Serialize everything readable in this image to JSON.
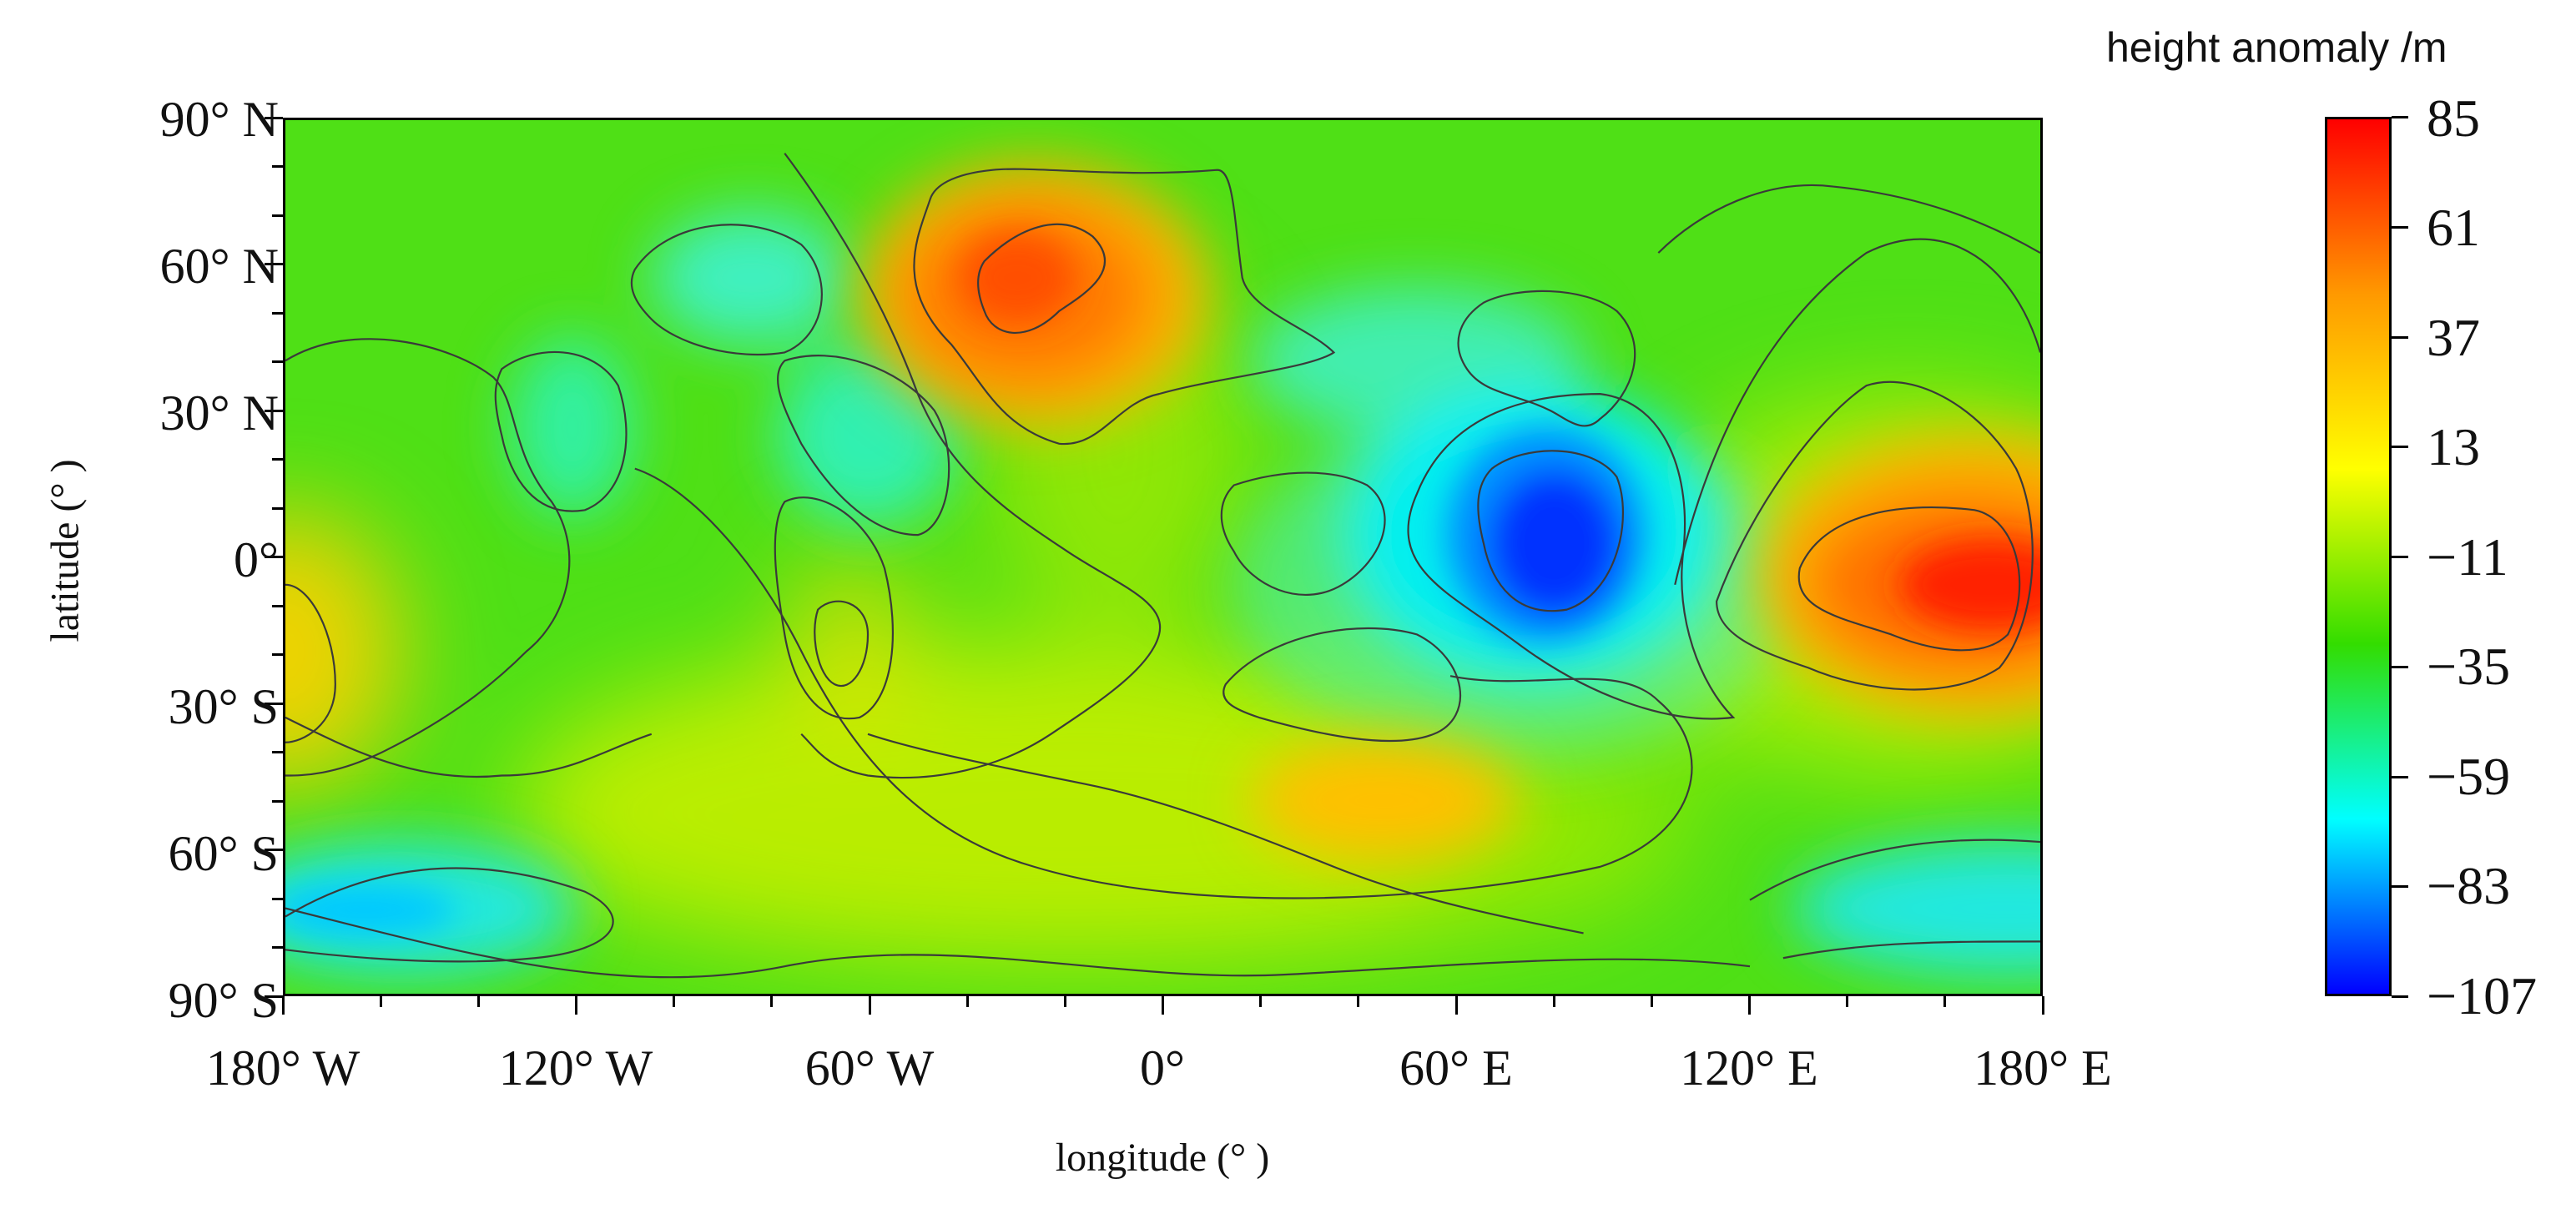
{
  "map": {
    "colorbar_title": "height anomaly /m",
    "xlabel": "longitude (° )",
    "ylabel": "latitude (° )",
    "lat_ticks": [
      "90° N",
      "60° N",
      "30° N",
      "0°",
      "30° S",
      "60° S",
      "90° S"
    ],
    "lon_ticks": [
      "180° W",
      "120° W",
      "60° W",
      "0°",
      "60° E",
      "120° E",
      "180° E"
    ],
    "colorbar_ticks": [
      "85",
      "61",
      "37",
      "13",
      "−11",
      "−35",
      "−59",
      "−83",
      "−107"
    ],
    "value_range": [
      -107,
      85
    ],
    "colors": {
      "max": "#ff0000",
      "high": "#ff9900",
      "mid_high": "#ffff00",
      "mid": "#33dd00",
      "low": "#00ffff",
      "min": "#0000ff"
    },
    "features": [
      {
        "label": "positive anomaly over northern Atlantic / Europe",
        "lon": -20,
        "lat": 55,
        "value": 60
      },
      {
        "label": "strongest negative anomaly over Indian Ocean",
        "lon": 78,
        "lat": 5,
        "value": -107
      },
      {
        "label": "strongest positive anomaly over western Pacific / New Guinea",
        "lon": 150,
        "lat": -5,
        "value": 85
      },
      {
        "label": "positive anomaly in southern Indian Ocean",
        "lon": 48,
        "lat": -45,
        "value": 45
      },
      {
        "label": "negative anomaly around Antarctica",
        "lon": -170,
        "lat": -72,
        "value": -55
      }
    ]
  }
}
